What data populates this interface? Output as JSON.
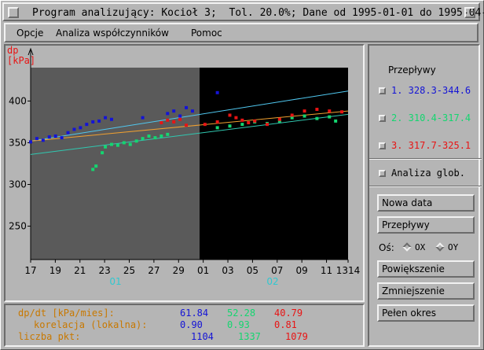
{
  "window": {
    "title": "Program analizujący: Kocioł 3;  Tol. 20.0%; Dane od 1995-01-01 do 1995-04-20"
  },
  "menu": {
    "items": [
      "Opcje",
      "Analiza współczynników",
      "Pomoc"
    ]
  },
  "chart_data": {
    "type": "scatter",
    "ylabel_line1": "dp",
    "ylabel_line2": "[kPa]",
    "ylim": [
      210,
      440
    ],
    "y_ticks": [
      250,
      300,
      350,
      400
    ],
    "x_ticks": [
      "17",
      "19",
      "21",
      "23",
      "25",
      "27",
      "29",
      "01",
      "03",
      "05",
      "07",
      "09",
      "11",
      "1314"
    ],
    "month_labels": [
      "01",
      "02"
    ],
    "panel_colors": {
      "left": "#5a5a5a",
      "right": "#000000"
    },
    "series": [
      {
        "name": "1. 328.3-344.6",
        "color": "#1414d6",
        "points": [
          [
            0,
            351
          ],
          [
            1,
            355
          ],
          [
            2,
            353
          ],
          [
            3,
            357
          ],
          [
            4,
            358
          ],
          [
            5,
            356
          ],
          [
            6,
            362
          ],
          [
            7,
            366
          ],
          [
            8,
            368
          ],
          [
            9,
            372
          ],
          [
            10,
            375
          ],
          [
            11,
            376
          ],
          [
            12,
            380
          ],
          [
            13,
            378
          ],
          [
            18,
            380
          ],
          [
            22,
            385
          ],
          [
            23,
            388
          ],
          [
            24,
            382
          ],
          [
            25,
            392
          ],
          [
            26,
            388
          ],
          [
            30,
            410
          ]
        ]
      },
      {
        "name": "2. 310.4-317.4",
        "color": "#14d670",
        "points": [
          [
            10,
            318
          ],
          [
            10.5,
            322
          ],
          [
            11.5,
            338
          ],
          [
            12,
            345
          ],
          [
            13,
            348
          ],
          [
            14,
            347
          ],
          [
            15,
            350
          ],
          [
            16,
            348
          ],
          [
            17,
            352
          ],
          [
            18,
            355
          ],
          [
            19,
            358
          ],
          [
            20,
            356
          ],
          [
            21,
            358
          ],
          [
            22,
            360
          ],
          [
            30,
            368
          ],
          [
            32,
            370
          ],
          [
            34,
            372
          ],
          [
            36,
            375
          ],
          [
            38,
            373
          ],
          [
            40,
            376
          ],
          [
            42,
            380
          ],
          [
            44,
            382
          ],
          [
            46,
            379
          ],
          [
            48,
            381
          ],
          [
            49,
            376
          ]
        ]
      },
      {
        "name": "3. 317.7-325.1",
        "color": "#e81414",
        "points": [
          [
            21,
            374
          ],
          [
            22,
            377
          ],
          [
            23,
            375
          ],
          [
            24,
            378
          ],
          [
            25,
            371
          ],
          [
            28,
            372
          ],
          [
            30,
            375
          ],
          [
            32,
            383
          ],
          [
            33,
            380
          ],
          [
            34,
            377
          ],
          [
            35,
            374
          ],
          [
            36,
            376
          ],
          [
            38,
            372
          ],
          [
            40,
            378
          ],
          [
            42,
            383
          ],
          [
            44,
            388
          ],
          [
            46,
            390
          ],
          [
            48,
            388
          ],
          [
            50,
            387
          ]
        ]
      }
    ],
    "trend_lines": [
      {
        "color": "#50c8f0",
        "from": [
          0,
          352
        ],
        "to": [
          51,
          412
        ]
      },
      {
        "color": "#f0a030",
        "from": [
          0,
          352
        ],
        "to": [
          51,
          388
        ]
      },
      {
        "color": "#30c8b0",
        "from": [
          0,
          336
        ],
        "to": [
          51,
          384
        ]
      }
    ]
  },
  "stats": {
    "row1_label": "dp/dt [kPa/mies]:",
    "row2_label": "korelacja (lokalna):",
    "row3_label": "liczba pkt:",
    "row1": [
      "61.84",
      "52.28",
      "40.79"
    ],
    "row2": [
      "0.90",
      "0.93",
      "0.81"
    ],
    "row3": [
      "1104",
      "1337",
      "1079"
    ],
    "colors": [
      "#1414d6",
      "#14d670",
      "#e81414"
    ],
    "label_color": "#c87800"
  },
  "panel": {
    "heading": "Przepływy",
    "flows": [
      {
        "label": "1. 328.3-344.6",
        "color": "#1414d6"
      },
      {
        "label": "2. 310.4-317.4",
        "color": "#14d670"
      },
      {
        "label": "3. 317.7-325.1",
        "color": "#e81414"
      }
    ],
    "global_label": "Analiza glob.",
    "new_data": "Nowa data",
    "flows_button": "Przepływy",
    "axis_label": "Oś:",
    "axis_ox": "OX",
    "axis_oy": "OY",
    "zoom_in": "Powiększenie",
    "zoom_out": "Zmniejszenie",
    "full_range": "Pełen okres"
  }
}
